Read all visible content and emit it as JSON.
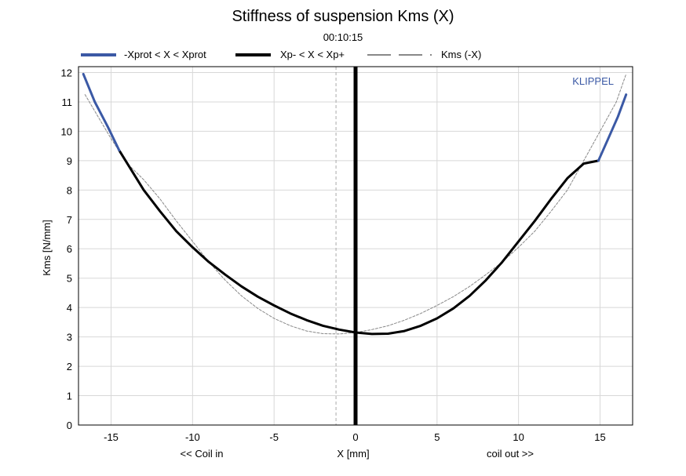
{
  "chart_data": {
    "type": "line",
    "title": "Stiffness of suspension Kms (X)",
    "subtitle": "00:10:15",
    "xlabel": "X [mm]",
    "xlabel_left": "<< Coil in",
    "xlabel_right": "coil out >>",
    "ylabel": "Kms [N/mm]",
    "xlim": [
      -17,
      17
    ],
    "ylim": [
      0,
      12.2
    ],
    "xticks": [
      -15,
      -10,
      -5,
      0,
      5,
      10,
      15
    ],
    "yticks": [
      0,
      1,
      2,
      3,
      4,
      5,
      6,
      7,
      8,
      9,
      10,
      11,
      12
    ],
    "grid": true,
    "watermark": "KLIPPEL",
    "legend_position": "top",
    "legend": [
      "-Xprot < X < Xprot",
      "Xp- < X < Xp+",
      "Kms (-X)"
    ],
    "vertical_markers": [
      {
        "x": 0,
        "style": "solid-thick",
        "color": "#000000"
      },
      {
        "x": -1.2,
        "style": "dashed",
        "color": "#aaaaaa"
      }
    ],
    "series": [
      {
        "name": "-Xprot < X < Xprot",
        "color": "#3b59a5",
        "segments": [
          {
            "x": [
              -16.7,
              -16,
              -15.2,
              -14.5
            ],
            "y": [
              11.95,
              11.0,
              10.15,
              9.35
            ]
          },
          {
            "x": [
              14.9,
              15.5,
              16.1,
              16.6
            ],
            "y": [
              9.0,
              9.75,
              10.5,
              11.25
            ]
          }
        ]
      },
      {
        "name": "Xp- < X < Xp+",
        "color": "#000000",
        "segments": [
          {
            "x": [
              -14.5,
              -13,
              -12,
              -11,
              -10,
              -9,
              -8,
              -7,
              -6,
              -5,
              -4,
              -3,
              -2,
              -1,
              0,
              1,
              2,
              3,
              4,
              5,
              6,
              7,
              8,
              9,
              10,
              11,
              12,
              13,
              14,
              14.9
            ],
            "y": [
              9.35,
              8.0,
              7.28,
              6.6,
              6.05,
              5.55,
              5.12,
              4.72,
              4.37,
              4.07,
              3.8,
              3.57,
              3.38,
              3.25,
              3.15,
              3.1,
              3.11,
              3.2,
              3.38,
              3.63,
              3.97,
              4.4,
              4.93,
              5.55,
              6.25,
              6.95,
              7.7,
              8.4,
              8.9,
              9.0
            ]
          }
        ]
      },
      {
        "name": "Kms (-X)",
        "color": "#888888",
        "segments": [
          {
            "x": [
              -16.6,
              -15,
              -14,
              -13,
              -12,
              -11,
              -10,
              -9,
              -8,
              -7,
              -6,
              -5,
              -4,
              -3,
              -2,
              -1,
              0,
              1,
              2,
              3,
              4,
              5,
              6,
              7,
              8,
              9,
              10,
              11,
              12,
              13,
              14,
              15,
              16,
              16.6
            ],
            "y": [
              11.25,
              9.75,
              8.9,
              8.35,
              7.7,
              6.95,
              6.25,
              5.55,
              4.93,
              4.4,
              3.97,
              3.63,
              3.38,
              3.2,
              3.11,
              3.1,
              3.15,
              3.25,
              3.38,
              3.57,
              3.8,
              4.07,
              4.37,
              4.72,
              5.12,
              5.55,
              6.05,
              6.6,
              7.28,
              8.0,
              9.0,
              10.0,
              11.0,
              11.95
            ]
          }
        ]
      }
    ]
  }
}
